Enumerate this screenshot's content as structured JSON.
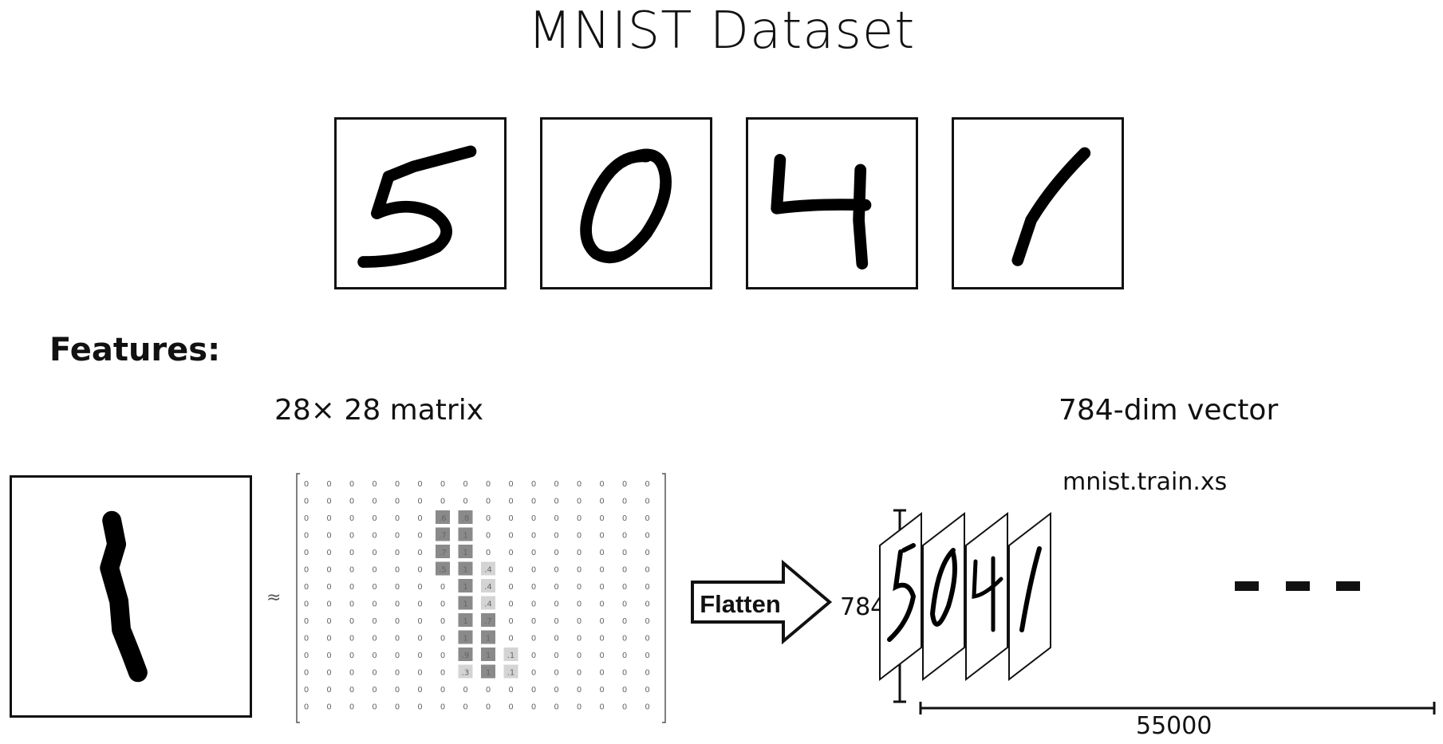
{
  "title": "MNIST Dataset",
  "sample_digits": [
    "5",
    "0",
    "4",
    "1"
  ],
  "features_label": "Features:",
  "matrix_label": "28× 28 matrix",
  "vector_label": "784-dim vector",
  "approx_symbol": "≈",
  "flatten_label": "Flatten",
  "dataset_name": "mnist.train.xs",
  "vector_length": "784",
  "sample_count": "55000",
  "matrix": {
    "rows": [
      [
        "0",
        "0",
        "0",
        "0",
        "0",
        "0",
        "0",
        "0",
        "0",
        "0",
        "0",
        "0",
        "0",
        "0",
        "0",
        "0"
      ],
      [
        "0",
        "0",
        "0",
        "0",
        "0",
        "0",
        "0",
        "0",
        "0",
        "0",
        "0",
        "0",
        "0",
        "0",
        "0",
        "0"
      ],
      [
        "0",
        "0",
        "0",
        "0",
        "0",
        "0",
        ".6",
        ".8",
        "0",
        "0",
        "0",
        "0",
        "0",
        "0",
        "0",
        "0"
      ],
      [
        "0",
        "0",
        "0",
        "0",
        "0",
        "0",
        ".7",
        "1",
        "0",
        "0",
        "0",
        "0",
        "0",
        "0",
        "0",
        "0"
      ],
      [
        "0",
        "0",
        "0",
        "0",
        "0",
        "0",
        ".7",
        "1",
        "0",
        "0",
        "0",
        "0",
        "0",
        "0",
        "0",
        "0"
      ],
      [
        "0",
        "0",
        "0",
        "0",
        "0",
        "0",
        ".5",
        "1",
        ".4",
        "0",
        "0",
        "0",
        "0",
        "0",
        "0",
        "0"
      ],
      [
        "0",
        "0",
        "0",
        "0",
        "0",
        "0",
        "0",
        "1",
        ".4",
        "0",
        "0",
        "0",
        "0",
        "0",
        "0",
        "0"
      ],
      [
        "0",
        "0",
        "0",
        "0",
        "0",
        "0",
        "0",
        "1",
        ".4",
        "0",
        "0",
        "0",
        "0",
        "0",
        "0",
        "0"
      ],
      [
        "0",
        "0",
        "0",
        "0",
        "0",
        "0",
        "0",
        "1",
        ".7",
        "0",
        "0",
        "0",
        "0",
        "0",
        "0",
        "0"
      ],
      [
        "0",
        "0",
        "0",
        "0",
        "0",
        "0",
        "0",
        "1",
        "1",
        "0",
        "0",
        "0",
        "0",
        "0",
        "0",
        "0"
      ],
      [
        "0",
        "0",
        "0",
        "0",
        "0",
        "0",
        "0",
        ".9",
        "1",
        ".1",
        "0",
        "0",
        "0",
        "0",
        "0",
        "0"
      ],
      [
        "0",
        "0",
        "0",
        "0",
        "0",
        "0",
        "0",
        ".3",
        "1",
        ".1",
        "0",
        "0",
        "0",
        "0",
        "0",
        "0"
      ],
      [
        "0",
        "0",
        "0",
        "0",
        "0",
        "0",
        "0",
        "0",
        "0",
        "0",
        "0",
        "0",
        "0",
        "0",
        "0",
        "0"
      ],
      [
        "0",
        "0",
        "0",
        "0",
        "0",
        "0",
        "0",
        "0",
        "0",
        "0",
        "0",
        "0",
        "0",
        "0",
        "0",
        "0"
      ]
    ]
  },
  "colors": {
    "ink": "#111111",
    "cell_dark": "#8a8a8a",
    "cell_light": "#d4d4d4"
  }
}
